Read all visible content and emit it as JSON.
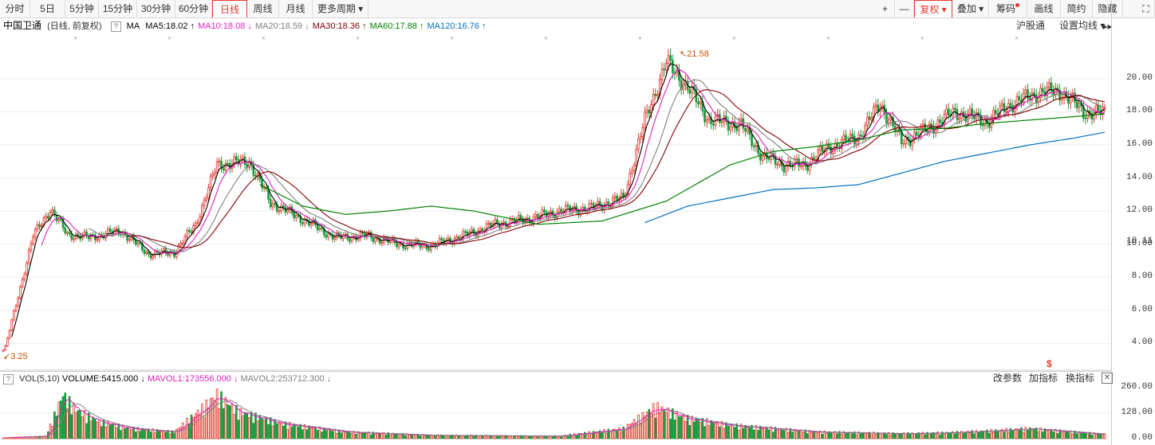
{
  "toolbar": {
    "periods": [
      "分时",
      "5日",
      "5分钟",
      "15分钟",
      "30分钟",
      "60分钟",
      "日线",
      "周线",
      "月线",
      "更多周期"
    ],
    "active_period": "日线",
    "right": [
      "+",
      "—",
      "复权",
      "叠加",
      "筹码",
      "画线",
      "简约",
      "隐藏"
    ],
    "fuquan": "复权",
    "more_arrow": "▾",
    "hide_arrow": "▸▸",
    "fullscreen": "⛶"
  },
  "header": {
    "stock_name": "中国卫通",
    "mode": "(日线, 前复权)",
    "help": "?",
    "ma_label": "MA",
    "ma_items": [
      {
        "label": "MA5:18.02",
        "arrow": "↑",
        "color": "#000000"
      },
      {
        "label": "MA10:18.08",
        "arrow": "↓",
        "color": "#e020c0"
      },
      {
        "label": "MA20:18.59",
        "arrow": "↓",
        "color": "#808080"
      },
      {
        "label": "MA30:18.36",
        "arrow": "↑",
        "color": "#800000"
      },
      {
        "label": "MA60:17.88",
        "arrow": "↑",
        "color": "#008000"
      },
      {
        "label": "MA120:16.76",
        "arrow": "↑",
        "color": "#0070c0"
      }
    ],
    "hugutong": "沪股通",
    "settings": "设置均线 ▾"
  },
  "yaxis": {
    "ticks": [
      "20.00",
      "18.00",
      "16.00",
      "14.00",
      "12.00",
      "10.11",
      "10.00",
      "8.00",
      "6.00",
      "4.00"
    ],
    "vol_ticks": [
      "260.00",
      "128.00",
      "0.00"
    ]
  },
  "annotations": {
    "high": "21.58",
    "low": "3.25",
    "dollar": "$"
  },
  "volume": {
    "help": "?",
    "title": "VOL(5,10)",
    "volume": "VOLUME:5415.000",
    "vol_arrow": "↓",
    "mavol1": "MAVOL1:173556.000",
    "mavol1_arrow": "↓",
    "mavol2": "MAVOL2:253712.300",
    "mavol2_arrow": "↓",
    "buttons": [
      "改参数",
      "加指标",
      "换指标"
    ],
    "close": "✕"
  },
  "colors": {
    "up": "#e8382f",
    "down": "#1a9b3c",
    "ma5": "#000000",
    "ma10": "#e020c0",
    "ma20": "#808080",
    "ma30": "#800000",
    "ma60": "#008000",
    "ma120": "#0070c0"
  },
  "chart_data": {
    "type": "candlestick",
    "ylim": [
      3.25,
      21.58
    ],
    "anchors": [
      [
        0,
        3.25
      ],
      [
        14,
        10.5
      ],
      [
        22,
        12.1
      ],
      [
        30,
        10.6
      ],
      [
        40,
        10.4
      ],
      [
        55,
        10.8
      ],
      [
        68,
        9.4
      ],
      [
        80,
        9.5
      ],
      [
        90,
        11.2
      ],
      [
        100,
        14.8
      ],
      [
        115,
        15.0
      ],
      [
        125,
        12.5
      ],
      [
        140,
        11.5
      ],
      [
        155,
        10.4
      ],
      [
        170,
        10.5
      ],
      [
        185,
        10.0
      ],
      [
        200,
        9.9
      ],
      [
        215,
        10.5
      ],
      [
        230,
        11.2
      ],
      [
        245,
        11.5
      ],
      [
        260,
        12.0
      ],
      [
        275,
        12.2
      ],
      [
        290,
        12.8
      ],
      [
        300,
        17.5
      ],
      [
        310,
        21.0
      ],
      [
        320,
        19.5
      ],
      [
        330,
        17.5
      ],
      [
        345,
        17.2
      ],
      [
        355,
        15.3
      ],
      [
        365,
        14.8
      ],
      [
        375,
        14.8
      ],
      [
        385,
        15.8
      ],
      [
        400,
        16.5
      ],
      [
        410,
        18.5
      ],
      [
        420,
        16.2
      ],
      [
        430,
        16.8
      ],
      [
        445,
        18.0
      ],
      [
        460,
        17.4
      ],
      [
        470,
        18.4
      ],
      [
        485,
        19.2
      ],
      [
        495,
        19.2
      ],
      [
        505,
        18.0
      ],
      [
        515,
        17.9
      ]
    ],
    "ma_anchors": {
      "ma60": [
        [
          120,
          13.6
        ],
        [
          140,
          12.3
        ],
        [
          160,
          11.8
        ],
        [
          180,
          12.0
        ],
        [
          200,
          12.3
        ],
        [
          220,
          12.0
        ],
        [
          250,
          11.2
        ],
        [
          280,
          11.4
        ],
        [
          310,
          12.6
        ],
        [
          340,
          14.8
        ],
        [
          360,
          15.6
        ],
        [
          380,
          15.9
        ],
        [
          400,
          16.3
        ],
        [
          420,
          16.9
        ],
        [
          440,
          17.0
        ],
        [
          460,
          17.3
        ],
        [
          480,
          17.5
        ],
        [
          500,
          17.7
        ],
        [
          515,
          17.88
        ]
      ],
      "ma120": [
        [
          300,
          11.3
        ],
        [
          320,
          12.3
        ],
        [
          340,
          12.8
        ],
        [
          360,
          13.3
        ],
        [
          380,
          13.4
        ],
        [
          400,
          13.6
        ],
        [
          420,
          14.3
        ],
        [
          440,
          15.0
        ],
        [
          460,
          15.5
        ],
        [
          480,
          16.0
        ],
        [
          500,
          16.4
        ],
        [
          515,
          16.76
        ]
      ]
    },
    "vol_ylim": [
      0,
      260
    ],
    "vol_anchors": [
      [
        0,
        5
      ],
      [
        20,
        15
      ],
      [
        28,
        260
      ],
      [
        34,
        170
      ],
      [
        45,
        100
      ],
      [
        60,
        60
      ],
      [
        80,
        40
      ],
      [
        95,
        200
      ],
      [
        100,
        260
      ],
      [
        110,
        160
      ],
      [
        130,
        90
      ],
      [
        160,
        40
      ],
      [
        200,
        20
      ],
      [
        260,
        15
      ],
      [
        290,
        60
      ],
      [
        305,
        190
      ],
      [
        320,
        120
      ],
      [
        340,
        80
      ],
      [
        360,
        60
      ],
      [
        380,
        40
      ],
      [
        400,
        35
      ],
      [
        420,
        30
      ],
      [
        440,
        35
      ],
      [
        460,
        45
      ],
      [
        480,
        60
      ],
      [
        500,
        40
      ],
      [
        515,
        25
      ]
    ]
  }
}
